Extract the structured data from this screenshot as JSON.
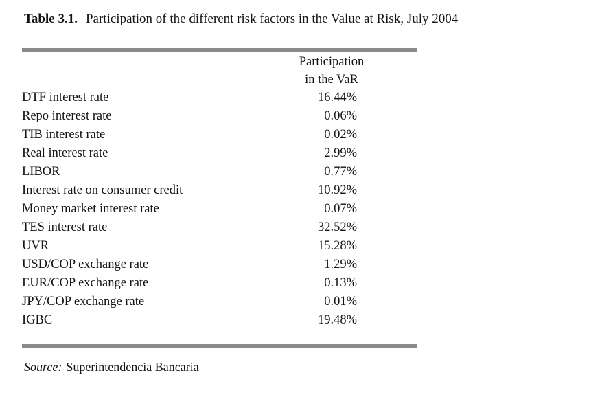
{
  "caption": {
    "label": "Table 3.1.",
    "text": "Participation of the different risk factors in the Value at Risk, July 2004"
  },
  "table": {
    "header": {
      "line1": "Participation",
      "line2": "in the VaR"
    },
    "rows": [
      {
        "factor": "DTF interest rate",
        "value": "16.44%"
      },
      {
        "factor": "Repo interest rate",
        "value": "0.06%"
      },
      {
        "factor": "TIB interest rate",
        "value": "0.02%"
      },
      {
        "factor": "Real interest rate",
        "value": "2.99%"
      },
      {
        "factor": "LIBOR",
        "value": "0.77%"
      },
      {
        "factor": "Interest rate on consumer credit",
        "value": "10.92%"
      },
      {
        "factor": "Money market interest rate",
        "value": "0.07%"
      },
      {
        "factor": "TES interest rate",
        "value": "32.52%"
      },
      {
        "factor": "UVR",
        "value": "15.28%"
      },
      {
        "factor": "USD/COP exchange rate",
        "value": "1.29%"
      },
      {
        "factor": "EUR/COP exchange rate",
        "value": "0.13%"
      },
      {
        "factor": "JPY/COP exchange rate",
        "value": "0.01%"
      },
      {
        "factor": "IGBC",
        "value": "19.48%"
      }
    ]
  },
  "source": {
    "label": "Source:",
    "text": "Superintendencia Bancaria"
  },
  "colors": {
    "rule_gray": "#8a8a8a",
    "text": "#141414",
    "background": "#ffffff"
  }
}
